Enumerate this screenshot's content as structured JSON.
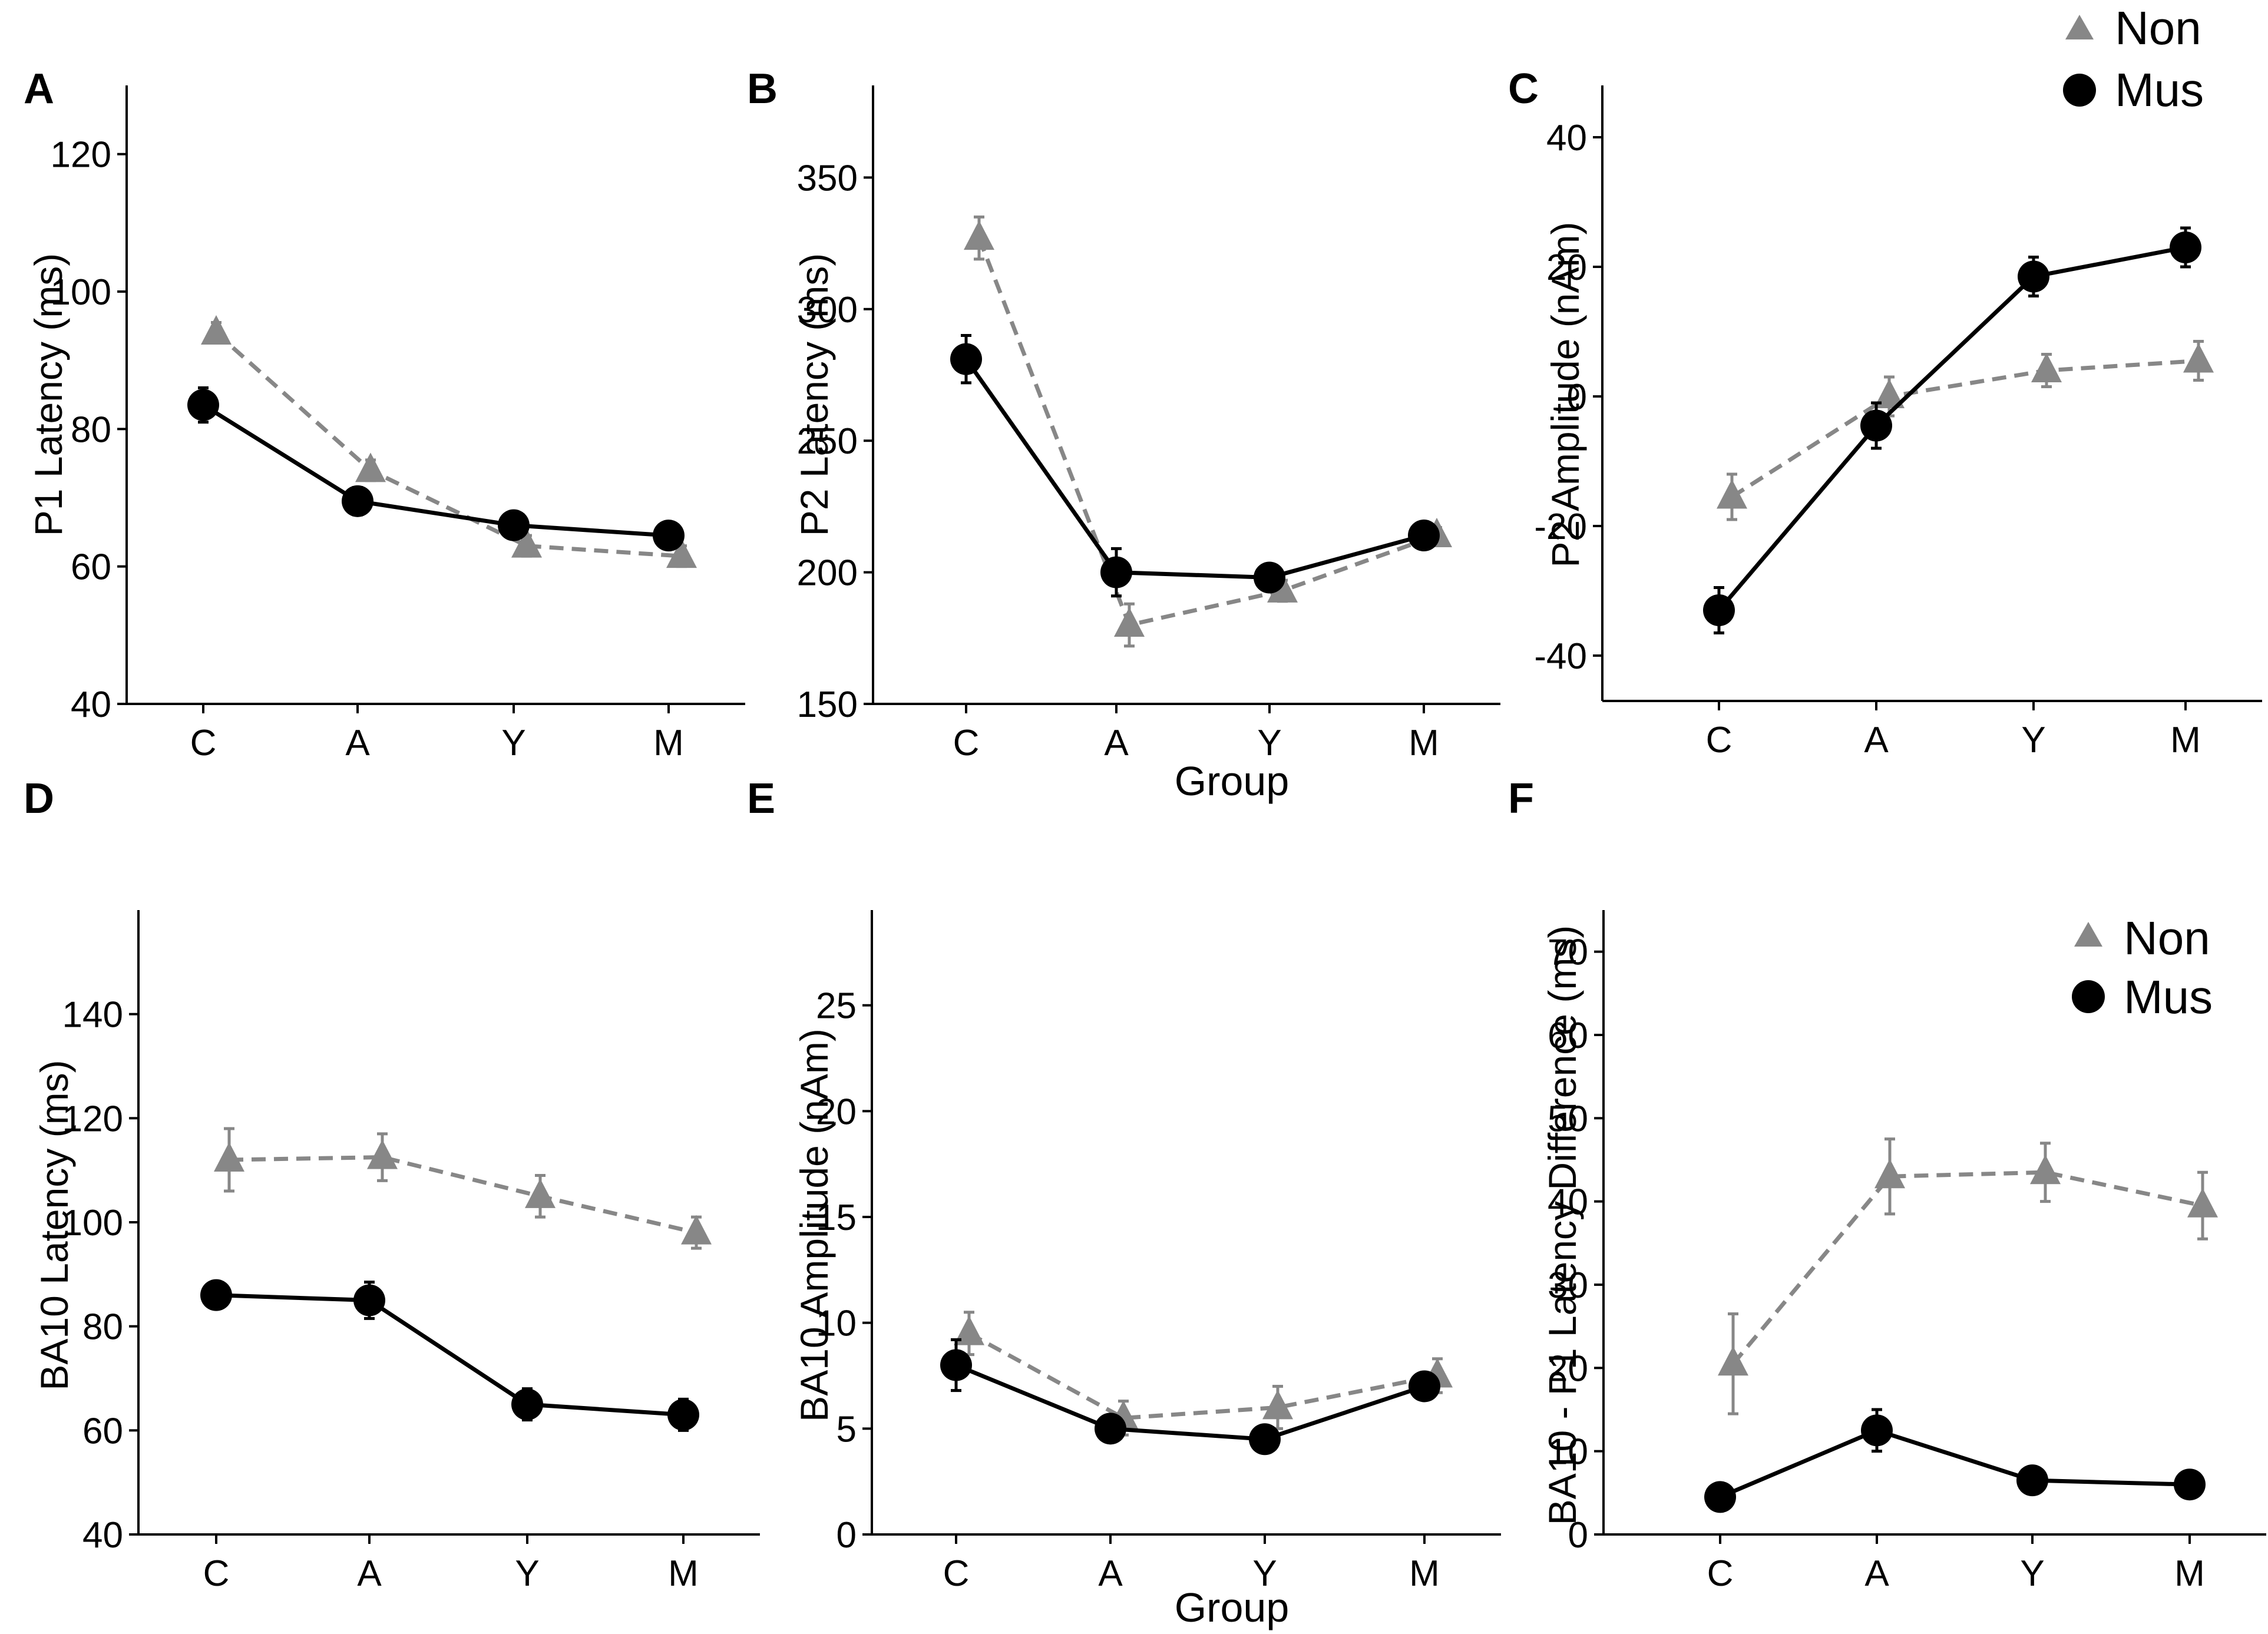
{
  "figure": {
    "colors": {
      "non": "#878787",
      "mus": "#000000",
      "axis": "#000000"
    },
    "legend_top": {
      "non": "Non",
      "mus": "Mus"
    },
    "legend_bottom": {
      "non": "Non",
      "mus": "Mus"
    }
  },
  "chart_data": [
    {
      "panel": "A",
      "type": "line",
      "title": "",
      "xlabel": "",
      "ylabel": "P1 Latency (ms)",
      "categories": [
        "C",
        "A",
        "Y",
        "M"
      ],
      "ylim": [
        40,
        130
      ],
      "yticks": [
        40,
        60,
        80,
        100,
        120
      ],
      "series": [
        {
          "name": "Non",
          "values": [
            94,
            74,
            63,
            61.5
          ],
          "errors": [
            1.5,
            1.5,
            1.5,
            1.5
          ]
        },
        {
          "name": "Mus",
          "values": [
            83.5,
            69.5,
            66,
            64.5
          ],
          "errors": [
            2.5,
            2,
            1.5,
            1.5
          ]
        }
      ]
    },
    {
      "panel": "B",
      "type": "line",
      "title": "",
      "xlabel": "Group",
      "ylabel": "P2 Latency (ms)",
      "categories": [
        "C",
        "A",
        "Y",
        "M"
      ],
      "ylim": [
        150,
        385
      ],
      "yticks": [
        150,
        200,
        250,
        300,
        350
      ],
      "series": [
        {
          "name": "Non",
          "values": [
            327,
            180,
            193,
            214
          ],
          "errors": [
            8,
            8,
            4,
            3
          ]
        },
        {
          "name": "Mus",
          "values": [
            281,
            200,
            198,
            214
          ],
          "errors": [
            9,
            9,
            3,
            3
          ]
        }
      ]
    },
    {
      "panel": "C",
      "type": "line",
      "title": "",
      "xlabel": "",
      "ylabel": "P2 Amplitude (nAm)",
      "categories": [
        "C",
        "A",
        "Y",
        "M"
      ],
      "ylim": [
        -47,
        48
      ],
      "yticks": [
        -40,
        -20,
        0,
        20,
        40
      ],
      "series": [
        {
          "name": "Non",
          "values": [
            -15.5,
            0,
            4,
            5.5
          ],
          "errors": [
            3.5,
            3,
            2.5,
            3
          ]
        },
        {
          "name": "Mus",
          "values": [
            -33,
            -4.5,
            18.5,
            23
          ],
          "errors": [
            3.5,
            3.5,
            3,
            3
          ]
        }
      ]
    },
    {
      "panel": "D",
      "type": "line",
      "title": "",
      "xlabel": "",
      "ylabel": "BA10 Latency (ms)",
      "categories": [
        "C",
        "A",
        "Y",
        "M"
      ],
      "ylim": [
        40,
        160
      ],
      "yticks": [
        40,
        60,
        80,
        100,
        120,
        140
      ],
      "series": [
        {
          "name": "Non",
          "values": [
            112,
            112.5,
            105,
            98
          ],
          "errors": [
            6,
            4.5,
            4,
            3
          ]
        },
        {
          "name": "Mus",
          "values": [
            86,
            85,
            65,
            63
          ],
          "errors": [
            1.5,
            3.5,
            3,
            3
          ]
        }
      ]
    },
    {
      "panel": "E",
      "type": "line",
      "title": "",
      "xlabel": "Group",
      "ylabel": "BA10 Amplitude (nAm)",
      "categories": [
        "C",
        "A",
        "Y",
        "M"
      ],
      "ylim": [
        0,
        29.5
      ],
      "yticks": [
        0,
        5,
        10,
        15,
        20,
        25
      ],
      "series": [
        {
          "name": "Non",
          "values": [
            9.5,
            5.5,
            6,
            7.5
          ],
          "errors": [
            1,
            0.8,
            1,
            0.8
          ]
        },
        {
          "name": "Mus",
          "values": [
            8,
            5,
            4.5,
            7
          ],
          "errors": [
            1.2,
            0.6,
            0.6,
            0.6
          ]
        }
      ]
    },
    {
      "panel": "F",
      "type": "line",
      "title": "",
      "xlabel": "",
      "ylabel": "BA10  - P1 Latency Difference (ms)",
      "categories": [
        "C",
        "A",
        "Y",
        "M"
      ],
      "ylim": [
        0,
        75
      ],
      "yticks": [
        0,
        10,
        20,
        30,
        40,
        50,
        60,
        70
      ],
      "series": [
        {
          "name": "Non",
          "values": [
            20.5,
            43,
            43.5,
            39.5
          ],
          "errors": [
            6,
            4.5,
            3.5,
            4
          ]
        },
        {
          "name": "Mus",
          "values": [
            4.5,
            12.5,
            6.5,
            6
          ],
          "errors": [
            1,
            2.5,
            1.5,
            1.5
          ]
        }
      ]
    }
  ]
}
